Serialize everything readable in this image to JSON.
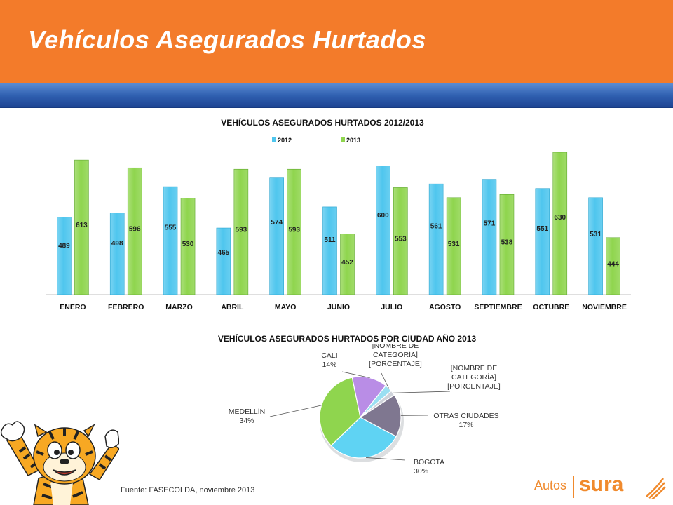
{
  "header": {
    "title": "Vehículos Asegurados Hurtados"
  },
  "source": "Fuente: FASECOLDA, noviembre 2013",
  "brand": {
    "autos": "Autos",
    "sura": "sura"
  },
  "colors": {
    "orange": "#f37b2a",
    "blue_bar": "#2f5fb0",
    "series_2012": "#4fc6ee",
    "series_2013": "#8fd54e"
  },
  "chart_data": [
    {
      "type": "bar",
      "title": "VEHÍCULOS ASEGURADOS HURTADOS 2012/2013",
      "categories": [
        "ENERO",
        "FEBRERO",
        "MARZO",
        "ABRIL",
        "MAYO",
        "JUNIO",
        "JULIO",
        "AGOSTO",
        "SEPTIEMBRE",
        "OCTUBRE",
        "NOVIEMBRE"
      ],
      "series": [
        {
          "name": "2012",
          "values": [
            489,
            498,
            555,
            465,
            574,
            511,
            600,
            561,
            571,
            551,
            531
          ]
        },
        {
          "name": "2013",
          "values": [
            613,
            596,
            530,
            593,
            593,
            452,
            553,
            531,
            538,
            630,
            444
          ]
        }
      ],
      "ylim": [
        320,
        630
      ],
      "legend": "top-center",
      "grid": false
    },
    {
      "type": "pie",
      "title": "VEHÍCULOS ASEGURADOS HURTADOS POR CIUDAD AÑO 2013",
      "slices": [
        {
          "label": "BOGOTA",
          "value": 30,
          "display": "30%"
        },
        {
          "label": "MEDELLÍN",
          "value": 34,
          "display": "34%"
        },
        {
          "label": "CALI",
          "value": 14,
          "display": "14%"
        },
        {
          "label": "[NOMBRE DE CATEGORÍA]",
          "value": 3,
          "display": "[PORCENTAJE]"
        },
        {
          "label": "[NOMBRE DE CATEGORÍA]",
          "value": 2,
          "display": "[PORCENTAJE]"
        },
        {
          "label": "OTRAS CIUDADES",
          "value": 17,
          "display": "17%"
        }
      ],
      "colors": [
        "#5fd3f3",
        "#8fd54e",
        "#b98de6",
        "#9adff2",
        "#cfd3da",
        "#7f7790"
      ]
    }
  ]
}
